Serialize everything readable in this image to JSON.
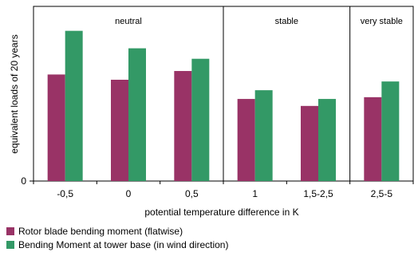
{
  "chart_data": {
    "type": "bar",
    "title": "",
    "xlabel": "potential temperature difference in K",
    "ylabel": "equivalent loads of 20 years",
    "ylim": [
      0,
      1
    ],
    "y_ticks": [
      "0"
    ],
    "categories": [
      "-0,5",
      "0",
      "0,5",
      "1",
      "1,5-2,5",
      "2,5-5"
    ],
    "series": [
      {
        "name": "Rotor blade bending moment (flatwise)",
        "color": "#993366",
        "values": [
          0.61,
          0.58,
          0.63,
          0.47,
          0.43,
          0.48
        ]
      },
      {
        "name": "Bending Moment at tower base (in wind direction)",
        "color": "#339966",
        "values": [
          0.86,
          0.76,
          0.7,
          0.52,
          0.47,
          0.57
        ]
      }
    ],
    "regions": [
      {
        "label": "neutral",
        "span": [
          0,
          2
        ]
      },
      {
        "label": "stable",
        "span": [
          3,
          4
        ]
      },
      {
        "label": "very stable",
        "span": [
          5,
          5
        ]
      }
    ],
    "legend_position": "bottom-left",
    "grid": false
  }
}
